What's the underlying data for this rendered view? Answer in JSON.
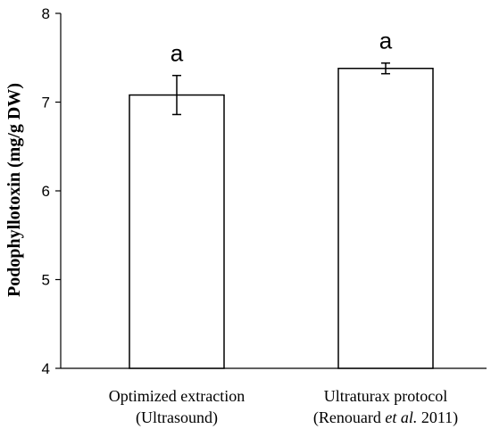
{
  "chart_data": {
    "type": "bar",
    "ylabel": "Podophyllotoxin (mg/g DW)",
    "ylim": [
      4,
      8
    ],
    "yticks": [
      4,
      5,
      6,
      7,
      8
    ],
    "grid": false,
    "categories": [
      {
        "line1": "Optimized extraction",
        "line2": "(Ultrasound)"
      },
      {
        "line1": "Ultraturax protocol",
        "line2_pre": "(Renouard ",
        "line2_italic": "et al.",
        "line2_post": " 2011)"
      }
    ],
    "values": [
      7.08,
      7.38
    ],
    "errors": [
      0.22,
      0.06
    ],
    "significance": [
      "a",
      "a"
    ]
  }
}
